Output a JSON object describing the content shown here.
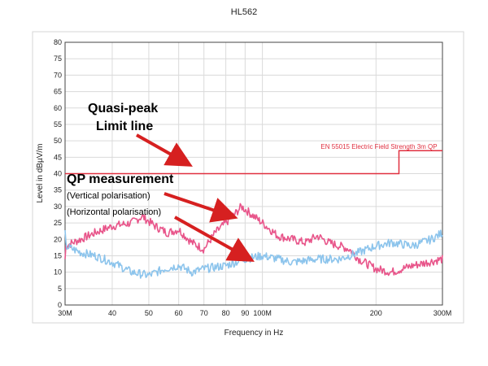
{
  "chart_data": {
    "type": "line",
    "title": "HL562",
    "xlabel": "Frequency in Hz",
    "ylabel": "Level in dBµV/m",
    "x_scale": "log",
    "xlim": [
      "30M",
      "300M"
    ],
    "ylim": [
      0,
      80
    ],
    "grid": true,
    "x_ticks": [
      "30M",
      "40",
      "50",
      "60",
      "70",
      "80",
      "90",
      "100M",
      "200",
      "300M"
    ],
    "y_ticks": [
      "0",
      "5",
      "10",
      "15",
      "20",
      "25",
      "30",
      "35",
      "40",
      "45",
      "50",
      "55",
      "60",
      "65",
      "70",
      "75",
      "80"
    ],
    "limit_line": {
      "name": "EN 55015 Electric Field Strength 3m QP",
      "color": "#e03040",
      "points": [
        [
          "30M",
          40
        ],
        [
          "230M",
          40
        ],
        [
          "230M",
          47
        ],
        [
          "300M",
          47
        ]
      ]
    },
    "series": [
      {
        "color": "#e8558a",
        "points": [
          [
            "30M",
            18
          ],
          [
            "33M",
            20
          ],
          [
            "36M",
            22
          ],
          [
            "40M",
            24
          ],
          [
            "45M",
            25
          ],
          [
            "48M",
            27
          ],
          [
            "52M",
            24
          ],
          [
            "56M",
            22
          ],
          [
            "60M",
            23
          ],
          [
            "65M",
            19
          ],
          [
            "70M",
            17
          ],
          [
            "75M",
            22
          ],
          [
            "80M",
            25
          ],
          [
            "85M",
            28
          ],
          [
            "88M",
            30
          ],
          [
            "95M",
            27
          ],
          [
            "100M",
            25
          ],
          [
            "110M",
            21
          ],
          [
            "120M",
            20
          ],
          [
            "130M",
            19
          ],
          [
            "140M",
            21
          ],
          [
            "150M",
            19
          ],
          [
            "160M",
            18
          ],
          [
            "170M",
            17
          ],
          [
            "180M",
            14
          ],
          [
            "200M",
            11
          ],
          [
            "220M",
            10
          ],
          [
            "250M",
            12
          ],
          [
            "300M",
            14
          ]
        ]
      },
      {
        "color": "#8cc4ec",
        "points": [
          [
            "30M",
            18
          ],
          [
            "33M",
            16
          ],
          [
            "36M",
            15
          ],
          [
            "40M",
            13
          ],
          [
            "45M",
            10
          ],
          [
            "50M",
            9
          ],
          [
            "55M",
            11
          ],
          [
            "60M",
            12
          ],
          [
            "65M",
            10
          ],
          [
            "70M",
            11
          ],
          [
            "80M",
            12
          ],
          [
            "90M",
            14
          ],
          [
            "100M",
            15
          ],
          [
            "110M",
            14
          ],
          [
            "120M",
            13
          ],
          [
            "140M",
            14
          ],
          [
            "160M",
            14
          ],
          [
            "180M",
            16
          ],
          [
            "200M",
            18
          ],
          [
            "220M",
            19
          ],
          [
            "250M",
            18
          ],
          [
            "280M",
            20
          ],
          [
            "300M",
            22
          ]
        ]
      }
    ],
    "annotations": [
      {
        "id": "qp_limit_title",
        "text": "Quasi-peak"
      },
      {
        "id": "qp_limit_sub",
        "text": "Limit line"
      },
      {
        "id": "qp_meas_title",
        "text": "QP measurement"
      },
      {
        "id": "qp_meas_vert",
        "text": "(Vertical polarisation)"
      },
      {
        "id": "qp_meas_horiz",
        "text": "(Horizontal polarisation)"
      }
    ]
  }
}
